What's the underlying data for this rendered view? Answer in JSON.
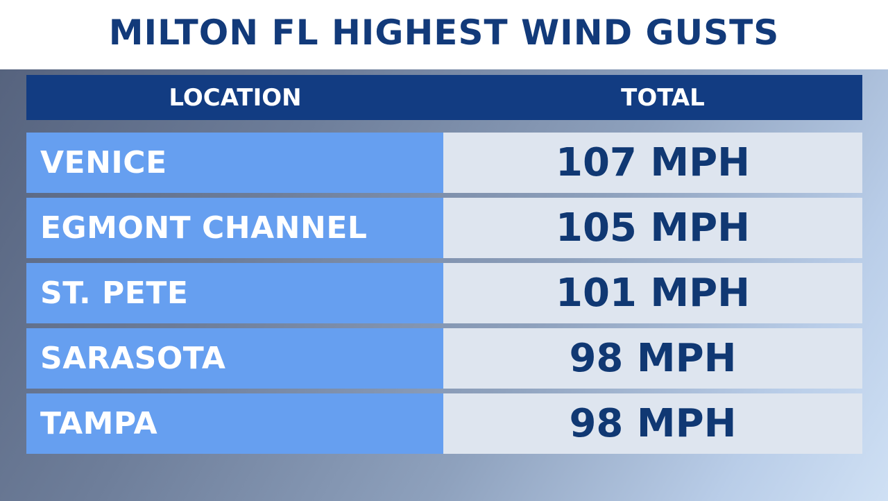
{
  "title": "MILTON FL HIGHEST WIND GUSTS",
  "colors": {
    "title_text": "#123a7a",
    "header_bg": "#123c82",
    "location_cell_bg": "#669ff0",
    "total_cell_bg": "#dee5ef",
    "total_text": "#103873"
  },
  "chart_data": {
    "type": "table",
    "title": "MILTON FL HIGHEST WIND GUSTS",
    "columns": [
      "LOCATION",
      "TOTAL"
    ],
    "rows": [
      {
        "location": "VENICE",
        "total": "107 MPH"
      },
      {
        "location": "EGMONT CHANNEL",
        "total": "105 MPH"
      },
      {
        "location": "ST. PETE",
        "total": "101 MPH"
      },
      {
        "location": "SARASOTA",
        "total": "98 MPH"
      },
      {
        "location": "TAMPA",
        "total": "98 MPH"
      }
    ]
  }
}
